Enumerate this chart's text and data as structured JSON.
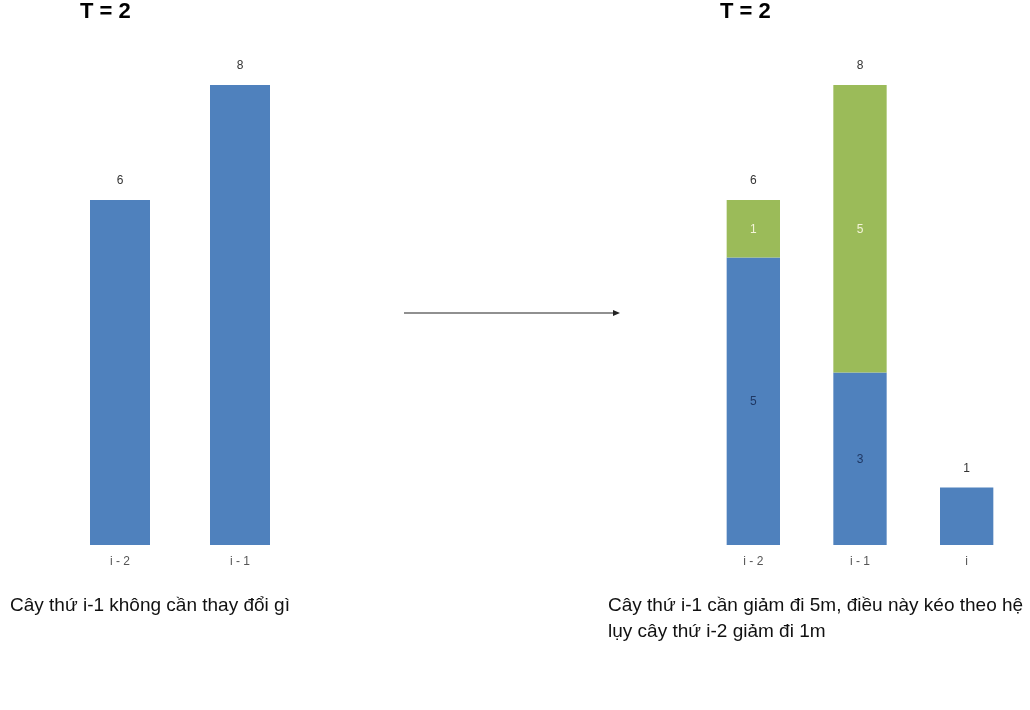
{
  "chart_data": [
    {
      "type": "bar",
      "title": "T = 2",
      "categories": [
        "i - 2",
        "i - 1"
      ],
      "values": [
        6,
        8
      ],
      "color": "#4f81bd",
      "data_labels": true,
      "tick_labels": "x",
      "grid": false,
      "legend": false,
      "annotations": [
        "Cây thứ i-1 không cần thay đổi gì"
      ]
    },
    {
      "type": "bar",
      "title": "T = 2",
      "categories": [
        "i - 2",
        "i - 1",
        "i"
      ],
      "stacked": true,
      "tick_labels": "x",
      "grid": false,
      "legend": false,
      "series": [
        {
          "color": "#4f81bd",
          "values": [
            5,
            3,
            1
          ],
          "value_labels": [
            "5",
            "3",
            null
          ]
        },
        {
          "color": "#9bbb59",
          "values": [
            1,
            5,
            null
          ],
          "value_labels": [
            "1",
            "5",
            null
          ]
        }
      ],
      "totals": [
        "6",
        "8",
        "1"
      ],
      "annotations": [
        "Cây thứ i-1 cần giảm đi 5m, điều này kéo theo hệ lụy cây thứ i-2 giảm đi 1m"
      ]
    }
  ]
}
